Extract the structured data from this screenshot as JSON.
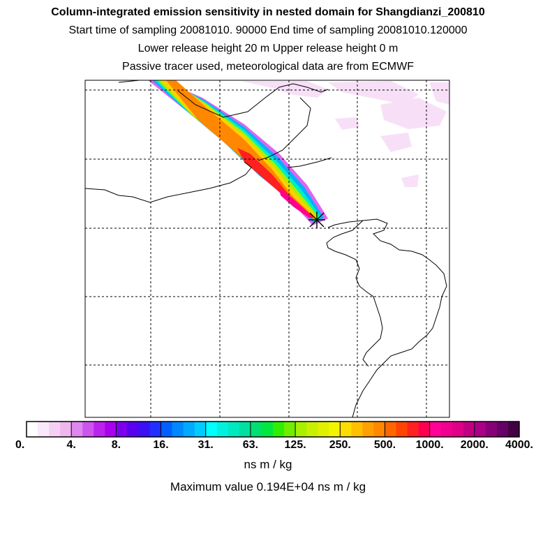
{
  "chart_data": {
    "type": "heatmap",
    "title": "Column-integrated emission sensitivity in nested domain for Shangdianzi_200810",
    "subtitle_lines": [
      "Start time of sampling 20081010. 90000      End time of sampling 20081010.120000",
      "Lower release height   20 m          Upper release height    0 m",
      "Passive tracer used, meteorological data are from ECMWF"
    ],
    "colorbar": {
      "tick_labels": [
        "0.",
        "4.",
        "8.",
        "16.",
        "31.",
        "63.",
        "125.",
        "250.",
        "500.",
        "1000.",
        "2000.",
        "4000."
      ],
      "units": "ns m / kg",
      "colors": [
        [
          "#ffffff",
          "#fbe8fb",
          "#f5d0f5",
          "#efb6ef"
        ],
        [
          "#dd88ee",
          "#cc55ee",
          "#bb22ee",
          "#aa00ee"
        ],
        [
          "#7a00ee",
          "#5a00f0",
          "#3a10f5",
          "#2030ff"
        ],
        [
          "#0060ff",
          "#0088ff",
          "#00aaff",
          "#00ccff"
        ],
        [
          "#00ffff",
          "#00f0e0",
          "#00e8c0",
          "#00e0a0"
        ],
        [
          "#00e070",
          "#00e840",
          "#30ee00",
          "#70ee00"
        ],
        [
          "#a8f000",
          "#c8f000",
          "#e0f000",
          "#f4f400"
        ],
        [
          "#ffdd00",
          "#ffc000",
          "#ffa000",
          "#ff8800"
        ],
        [
          "#ff6600",
          "#ff4400",
          "#ff2020",
          "#ff0050"
        ],
        [
          "#ff0099",
          "#f00090",
          "#e00088",
          "#c00080"
        ],
        [
          "#aa0088",
          "#880077",
          "#660066",
          "#440044"
        ]
      ]
    },
    "max_value_text": "Maximum value  0.194E+04 ns m / kg",
    "release_site": "Shangdianzi"
  }
}
